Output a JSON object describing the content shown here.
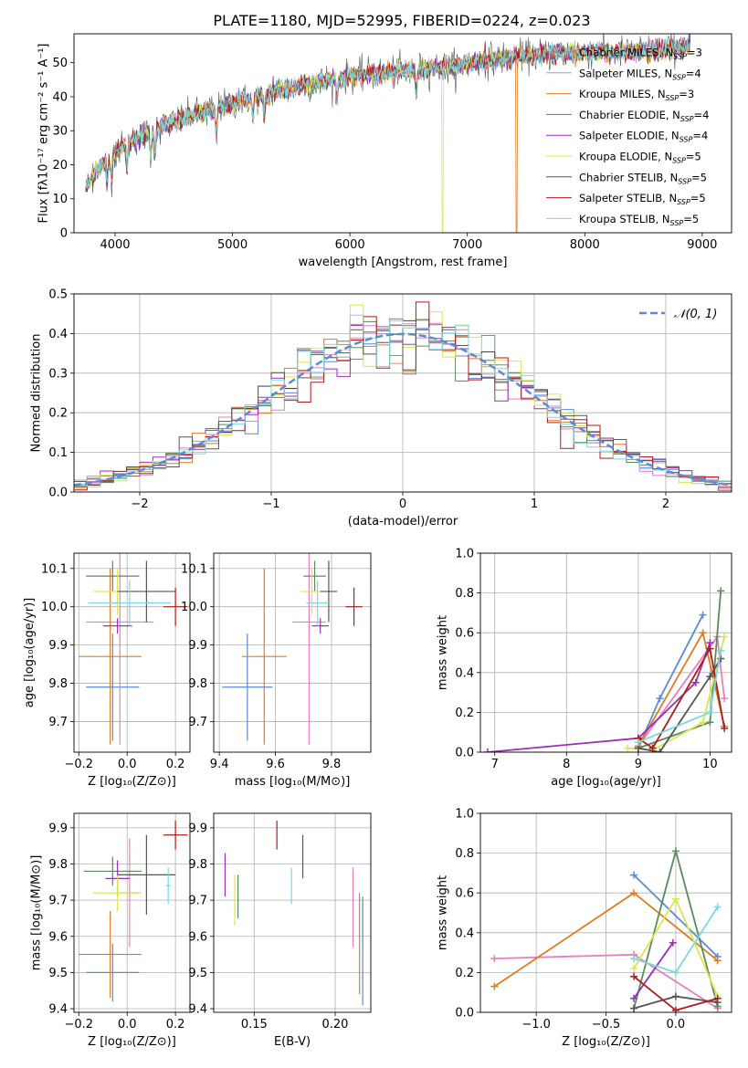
{
  "title": "PLATE=1180, MJD=52995, FIBERID=0224, z=0.023",
  "colors": {
    "series": [
      "#5b8ad6",
      "#e87ec0",
      "#e07b22",
      "#5a8a5e",
      "#9a2fb8",
      "#d9e84a",
      "#555555",
      "#b01a1a",
      "#7ad8e0"
    ],
    "gaussian": "#5b8ad6",
    "grid": "#b0b0b0"
  },
  "chart_data": [
    {
      "id": "spectrum",
      "type": "line",
      "xlabel": "wavelength [Angstrom, rest frame]",
      "ylabel": "Flux [fλ10⁻¹⁷ erg cm⁻² s⁻¹ A⁻¹]",
      "xlim": [
        3650,
        9250
      ],
      "ylim": [
        0,
        58.5
      ],
      "xticks": [
        4000,
        5000,
        6000,
        7000,
        8000,
        9000
      ],
      "yticks": [
        0,
        10,
        20,
        30,
        40,
        50
      ],
      "grid": false,
      "legend_loc": "upper-right",
      "legend": [
        "Chabrier MILES, N",
        "Salpeter MILES, N",
        "Kroupa MILES, N",
        "Chabrier ELODIE, N",
        "Salpeter ELODIE, N",
        "Kroupa ELODIE, N",
        "Chabrier STELIB, N",
        "Salpeter STELIB, N",
        "Kroupa STELIB, N"
      ],
      "legend_sub": "SSP",
      "legend_n": [
        "3",
        "4",
        "3",
        "4",
        "4",
        "5",
        "5",
        "5",
        "5"
      ],
      "continuum": {
        "x": [
          3750,
          3850,
          3950,
          4050,
          4200,
          4400,
          4600,
          4800,
          5000,
          5200,
          5400,
          5600,
          5800,
          6000,
          6300,
          6600,
          6900,
          7200,
          7500,
          7800,
          8100,
          8400,
          8700,
          8900
        ],
        "y": [
          13,
          19,
          22,
          25,
          28,
          31,
          34,
          36,
          38,
          40,
          42,
          43,
          45,
          46,
          47,
          48,
          49,
          51,
          52,
          53,
          53,
          53,
          54,
          55
        ]
      },
      "drops": [
        {
          "x": 6790,
          "series": 5
        },
        {
          "x": 7420,
          "series": 2
        }
      ]
    },
    {
      "id": "residuals",
      "type": "histogram",
      "xlabel": "(data-model)/error",
      "ylabel": "Normed distribution",
      "xlim": [
        -2.5,
        2.5
      ],
      "ylim": [
        0,
        0.5
      ],
      "xticks": [
        -2,
        -1,
        0,
        1,
        2
      ],
      "yticks": [
        0.0,
        0.1,
        0.2,
        0.3,
        0.4,
        0.5
      ],
      "grid": true,
      "legend_loc": "upper-right",
      "gaussian_label": "𝒩(0, 1)",
      "bin_width": 0.1
    },
    {
      "id": "z-age",
      "type": "errorbar",
      "xlabel": "Z [log₁₀(Z/Z⊙)]",
      "ylabel": "age  [log₁₀(age/yr)]",
      "xlim": [
        -0.22,
        0.26
      ],
      "ylim": [
        9.62,
        10.14
      ],
      "xticks": [
        -0.2,
        0.0,
        0.2
      ],
      "yticks": [
        9.7,
        9.8,
        9.9,
        10.0,
        10.1
      ],
      "grid": true,
      "points": [
        {
          "s": 0,
          "x": -0.06,
          "y": 9.79,
          "xe": 0.11,
          "ye": 0.14
        },
        {
          "s": 1,
          "x": -0.03,
          "y": 9.96,
          "xe": 0.14,
          "ye": 0.32
        },
        {
          "s": 2,
          "x": -0.07,
          "y": 9.87,
          "xe": 0.13,
          "ye": 0.23
        },
        {
          "s": 3,
          "x": -0.06,
          "y": 10.08,
          "xe": 0.11,
          "ye": 0.04
        },
        {
          "s": 4,
          "x": -0.04,
          "y": 9.95,
          "xe": 0.06,
          "ye": 0.02
        },
        {
          "s": 5,
          "x": -0.04,
          "y": 10.04,
          "xe": 0.1,
          "ye": 0.06
        },
        {
          "s": 6,
          "x": 0.08,
          "y": 10.04,
          "xe": 0.12,
          "ye": 0.08
        },
        {
          "s": 7,
          "x": 0.2,
          "y": 10.0,
          "xe": 0.05,
          "ye": 0.05
        },
        {
          "s": 8,
          "x": 0.01,
          "y": 10.01,
          "xe": 0.17,
          "ye": 0.06
        }
      ]
    },
    {
      "id": "mass-age",
      "type": "errorbar",
      "xlabel": "mass [log₁₀(M/M⊙)]",
      "ylabel": "",
      "xlim": [
        9.38,
        9.94
      ],
      "ylim": [
        9.62,
        10.14
      ],
      "xticks": [
        9.4,
        9.6,
        9.8
      ],
      "yticks": [
        9.7,
        9.8,
        9.9,
        10.0,
        10.1
      ],
      "grid": true,
      "points": [
        {
          "s": 0,
          "x": 9.5,
          "y": 9.79,
          "xe": 0.09,
          "ye": 0.14
        },
        {
          "s": 1,
          "x": 9.72,
          "y": 9.96,
          "xe": 0.06,
          "ye": 0.32
        },
        {
          "s": 2,
          "x": 9.56,
          "y": 9.87,
          "xe": 0.08,
          "ye": 0.23
        },
        {
          "s": 3,
          "x": 9.74,
          "y": 10.08,
          "xe": 0.04,
          "ye": 0.04
        },
        {
          "s": 4,
          "x": 9.76,
          "y": 9.95,
          "xe": 0.03,
          "ye": 0.02
        },
        {
          "s": 5,
          "x": 9.73,
          "y": 10.04,
          "xe": 0.04,
          "ye": 0.06
        },
        {
          "s": 6,
          "x": 9.79,
          "y": 10.04,
          "xe": 0.03,
          "ye": 0.08
        },
        {
          "s": 7,
          "x": 9.88,
          "y": 10.0,
          "xe": 0.03,
          "ye": 0.05
        },
        {
          "s": 8,
          "x": 9.75,
          "y": 10.01,
          "xe": 0.04,
          "ye": 0.06
        }
      ]
    },
    {
      "id": "age-weight",
      "type": "line-markers",
      "xlabel": "age  [log₁₀(age/yr)]",
      "ylabel": "mass weight",
      "xlim": [
        6.8,
        10.3
      ],
      "ylim": [
        0,
        1.0
      ],
      "xticks": [
        7,
        8,
        9,
        10
      ],
      "yticks": [
        0.0,
        0.2,
        0.4,
        0.6,
        0.8,
        1.0
      ],
      "grid": true,
      "series": [
        {
          "s": 0,
          "x": [
            9.0,
            9.3,
            9.9
          ],
          "y": [
            0.02,
            0.27,
            0.69
          ]
        },
        {
          "s": 1,
          "x": [
            9.0,
            10.1,
            10.2
          ],
          "y": [
            0.03,
            0.58,
            0.27
          ]
        },
        {
          "s": 2,
          "x": [
            9.0,
            9.9,
            10.2
          ],
          "y": [
            0.03,
            0.6,
            0.13
          ]
        },
        {
          "s": 3,
          "x": [
            9.0,
            10.0,
            10.15
          ],
          "y": [
            0.02,
            0.15,
            0.81
          ]
        },
        {
          "s": 4,
          "x": [
            6.9,
            9.0,
            9.8,
            10.0
          ],
          "y": [
            0.0,
            0.07,
            0.35,
            0.55
          ]
        },
        {
          "s": 5,
          "x": [
            8.85,
            9.2,
            9.9,
            10.2
          ],
          "y": [
            0.02,
            0.01,
            0.15,
            0.58
          ]
        },
        {
          "s": 6,
          "x": [
            9.0,
            9.3,
            10.0,
            10.15
          ],
          "y": [
            0.02,
            0.0,
            0.38,
            0.47
          ]
        },
        {
          "s": 7,
          "x": [
            9.0,
            9.2,
            10.0,
            10.2
          ],
          "y": [
            0.07,
            0.02,
            0.52,
            0.12
          ]
        },
        {
          "s": 8,
          "x": [
            9.0,
            10.0,
            10.15
          ],
          "y": [
            0.05,
            0.2,
            0.51
          ]
        }
      ]
    },
    {
      "id": "z-mass",
      "type": "errorbar",
      "xlabel": "Z [log₁₀(Z/Z⊙)]",
      "ylabel": "mass [log₁₀(M/M⊙)]",
      "xlim": [
        -0.22,
        0.26
      ],
      "ylim": [
        9.39,
        9.94
      ],
      "xticks": [
        -0.2,
        0.0,
        0.2
      ],
      "yticks": [
        9.4,
        9.5,
        9.6,
        9.7,
        9.8,
        9.9
      ],
      "grid": true,
      "points": [
        {
          "s": 0,
          "x": -0.06,
          "y": 9.5,
          "xe": 0.11,
          "ye": 0.08
        },
        {
          "s": 1,
          "x": 0.01,
          "y": 9.72,
          "xe": 0.04,
          "ye": 0.15
        },
        {
          "s": 2,
          "x": -0.07,
          "y": 9.55,
          "xe": 0.13,
          "ye": 0.12
        },
        {
          "s": 3,
          "x": -0.06,
          "y": 9.78,
          "xe": 0.12,
          "ye": 0.04
        },
        {
          "s": 4,
          "x": -0.04,
          "y": 9.76,
          "xe": 0.05,
          "ye": 0.05
        },
        {
          "s": 5,
          "x": -0.04,
          "y": 9.72,
          "xe": 0.1,
          "ye": 0.05
        },
        {
          "s": 6,
          "x": 0.08,
          "y": 9.77,
          "xe": 0.12,
          "ye": 0.11
        },
        {
          "s": 7,
          "x": 0.2,
          "y": 9.88,
          "xe": 0.05,
          "ye": 0.04
        },
        {
          "s": 8,
          "x": 0.17,
          "y": 9.74,
          "xe": 0.01,
          "ye": 0.05
        }
      ]
    },
    {
      "id": "ebv-mass",
      "type": "errorbar",
      "xlabel": "E(B-V)",
      "ylabel": "",
      "xlim": [
        0.125,
        0.222
      ],
      "ylim": [
        9.39,
        9.94
      ],
      "xticks": [
        0.15,
        0.2
      ],
      "yticks": [
        9.4,
        9.5,
        9.6,
        9.7,
        9.8,
        9.9
      ],
      "grid": true,
      "points": [
        {
          "s": 0,
          "x": 0.217,
          "y": 9.56,
          "xe": 0,
          "ye": 0.15
        },
        {
          "s": 1,
          "x": 0.211,
          "y": 9.68,
          "xe": 0,
          "ye": 0.11
        },
        {
          "s": 2,
          "x": 0.215,
          "y": 9.58,
          "xe": 0,
          "ye": 0.14
        },
        {
          "s": 3,
          "x": 0.14,
          "y": 9.71,
          "xe": 0,
          "ye": 0.06
        },
        {
          "s": 4,
          "x": 0.132,
          "y": 9.77,
          "xe": 0,
          "ye": 0.06
        },
        {
          "s": 5,
          "x": 0.138,
          "y": 9.7,
          "xe": 0,
          "ye": 0.07
        },
        {
          "s": 6,
          "x": 0.18,
          "y": 9.82,
          "xe": 0,
          "ye": 0.06
        },
        {
          "s": 7,
          "x": 0.164,
          "y": 9.88,
          "xe": 0,
          "ye": 0.04
        },
        {
          "s": 8,
          "x": 0.173,
          "y": 9.74,
          "xe": 0,
          "ye": 0.05
        }
      ]
    },
    {
      "id": "z-weight",
      "type": "line-markers",
      "xlabel": "Z [log₁₀(Z/Z⊙)]",
      "ylabel": "mass weight",
      "xlim": [
        -1.4,
        0.4
      ],
      "ylim": [
        0,
        1.0
      ],
      "xticks": [
        -1.0,
        -0.5,
        0.0
      ],
      "yticks": [
        0.0,
        0.2,
        0.4,
        0.6,
        0.8,
        1.0
      ],
      "grid": true,
      "series": [
        {
          "s": 0,
          "x": [
            -0.3,
            0.3
          ],
          "y": [
            0.69,
            0.28
          ]
        },
        {
          "s": 1,
          "x": [
            -1.3,
            -0.3,
            0.3
          ],
          "y": [
            0.27,
            0.29,
            0.02
          ]
        },
        {
          "s": 2,
          "x": [
            -1.3,
            -0.3,
            0.3
          ],
          "y": [
            0.13,
            0.6,
            0.26
          ]
        },
        {
          "s": 3,
          "x": [
            -0.3,
            0.0,
            0.3
          ],
          "y": [
            0.02,
            0.81,
            0.03
          ]
        },
        {
          "s": 4,
          "x": [
            -0.3,
            -0.02
          ],
          "y": [
            0.07,
            0.35
          ]
        },
        {
          "s": 5,
          "x": [
            -0.3,
            0.0,
            0.3
          ],
          "y": [
            0.22,
            0.57,
            0.08
          ]
        },
        {
          "s": 6,
          "x": [
            -0.3,
            0.0,
            0.3
          ],
          "y": [
            0.02,
            0.08,
            0.05
          ]
        },
        {
          "s": 7,
          "x": [
            -0.3,
            0.0,
            0.3
          ],
          "y": [
            0.18,
            0.01,
            0.07
          ]
        },
        {
          "s": 8,
          "x": [
            -0.3,
            0.0,
            0.3
          ],
          "y": [
            0.27,
            0.2,
            0.53
          ]
        }
      ]
    }
  ]
}
